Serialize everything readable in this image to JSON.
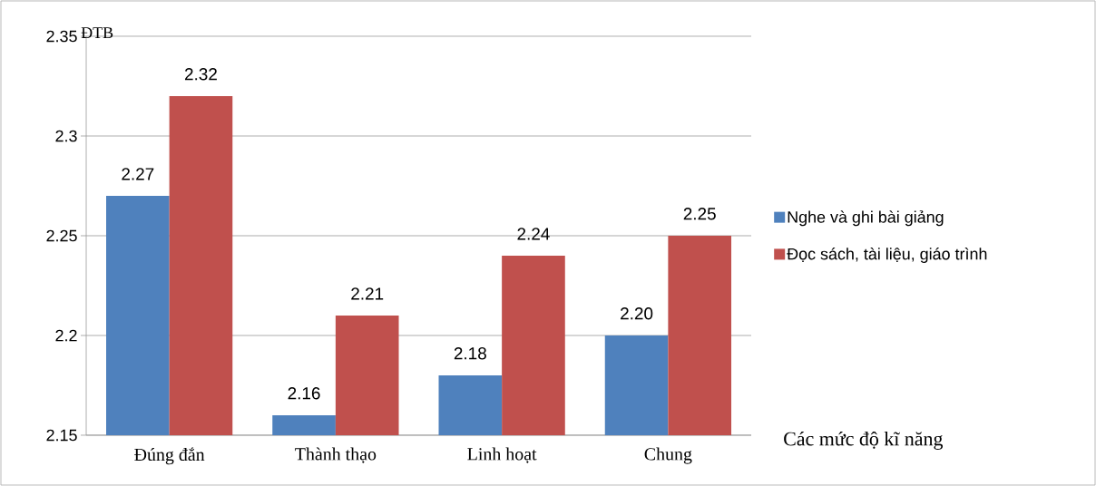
{
  "chart_data": {
    "type": "bar",
    "ylabel": "ĐTB",
    "xlabel": "Các mức độ kĩ năng",
    "categories": [
      "Đúng đắn",
      "Thành thạo",
      "Linh hoạt",
      "Chung"
    ],
    "series": [
      {
        "name": "Nghe và ghi bài giảng",
        "color": "#4f81bd",
        "values": [
          2.27,
          2.16,
          2.18,
          2.2
        ],
        "value_labels": [
          "2.27",
          "2.16",
          "2.18",
          "2.20"
        ]
      },
      {
        "name": "Đọc sách, tài liệu, giáo trình",
        "color": "#c0504d",
        "values": [
          2.32,
          2.21,
          2.24,
          2.25
        ],
        "value_labels": [
          "2.32",
          "2.21",
          "2.24",
          "2.25"
        ]
      }
    ],
    "ylim": [
      2.15,
      2.35
    ],
    "yticks": [
      2.15,
      2.2,
      2.25,
      2.3,
      2.35
    ],
    "grid": "y",
    "legend": "right"
  }
}
